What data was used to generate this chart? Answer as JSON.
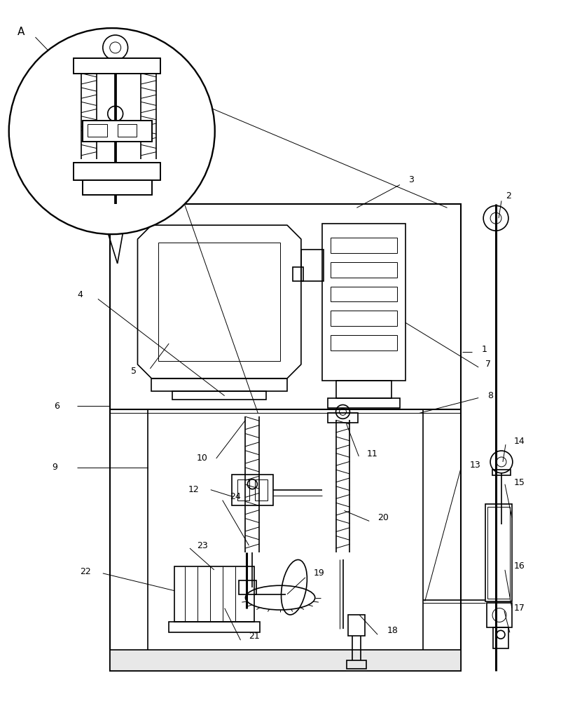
{
  "bg_color": "#ffffff",
  "line_color": "#000000",
  "line_width": 1.2,
  "thin_line": 0.7,
  "fig_width": 8.31,
  "fig_height": 10.0
}
